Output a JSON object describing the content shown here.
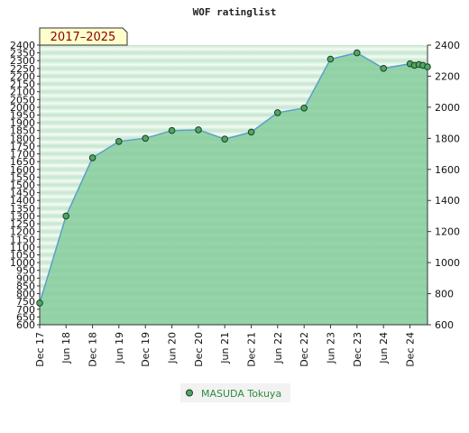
{
  "chart_data": {
    "type": "area",
    "title": "WOF ratinglist",
    "badge": "2017–2025",
    "series": [
      {
        "name": "MASUDA Tokuya",
        "points": [
          {
            "x": "2017-12",
            "y": 740
          },
          {
            "x": "2018-06",
            "y": 1300
          },
          {
            "x": "2018-12",
            "y": 1675
          },
          {
            "x": "2019-06",
            "y": 1780
          },
          {
            "x": "2019-12",
            "y": 1800
          },
          {
            "x": "2020-06",
            "y": 1850
          },
          {
            "x": "2020-12",
            "y": 1855
          },
          {
            "x": "2021-06",
            "y": 1795
          },
          {
            "x": "2021-12",
            "y": 1840
          },
          {
            "x": "2022-06",
            "y": 1965
          },
          {
            "x": "2022-12",
            "y": 1995
          },
          {
            "x": "2023-06",
            "y": 2310
          },
          {
            "x": "2023-12",
            "y": 2350
          },
          {
            "x": "2024-06",
            "y": 2250
          },
          {
            "x": "2024-12",
            "y": 2280
          },
          {
            "x": "2025-01",
            "y": 2270
          },
          {
            "x": "2025-02",
            "y": 2275
          },
          {
            "x": "2025-03",
            "y": 2270
          },
          {
            "x": "2025-04",
            "y": 2260
          }
        ]
      }
    ],
    "x_ticks": [
      "Dec 17",
      "Jun 18",
      "Dec 18",
      "Jun 19",
      "Dec 19",
      "Jun 20",
      "Dec 20",
      "Jun 21",
      "Dec 21",
      "Jun 22",
      "Dec 22",
      "Jun 23",
      "Dec 23",
      "Jun 24",
      "Dec 24"
    ],
    "y_left_ticks": [
      600,
      650,
      700,
      750,
      800,
      850,
      900,
      950,
      1000,
      1050,
      1100,
      1150,
      1200,
      1250,
      1300,
      1350,
      1400,
      1450,
      1500,
      1550,
      1600,
      1650,
      1700,
      1750,
      1800,
      1850,
      1900,
      1950,
      2000,
      2050,
      2100,
      2150,
      2200,
      2250,
      2300,
      2350,
      2400
    ],
    "y_right_ticks": [
      600,
      800,
      1000,
      1200,
      1400,
      1600,
      1800,
      2000,
      2200,
      2400
    ],
    "ylim": [
      600,
      2400
    ],
    "colors": {
      "area": "#86cc9c",
      "line": "#5aa0c8",
      "marker": "#4da862",
      "band_light": "#eaf6ee",
      "band_dark": "#c8e8d2",
      "badge_fill": "#ffffcc",
      "badge_text": "#8b0000"
    },
    "legend_placement": "bottom-center"
  }
}
